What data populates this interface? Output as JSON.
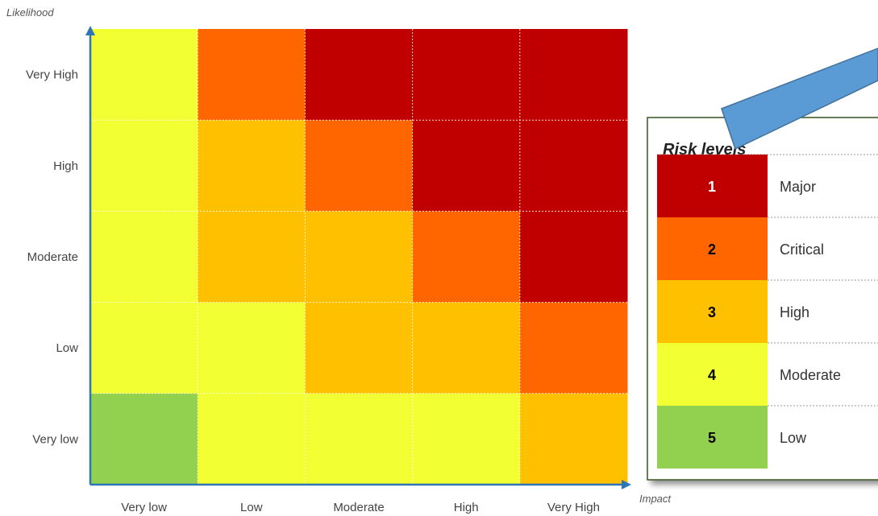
{
  "chart_data": {
    "type": "heatmap",
    "xlabel": "Impact",
    "ylabel": "Likelihood",
    "x_categories": [
      "Very low",
      "Low",
      "Moderate",
      "High",
      "Very High"
    ],
    "y_categories": [
      "Very low",
      "Low",
      "Moderate",
      "High",
      "Very High"
    ],
    "matrix_rows_top_to_bottom": [
      {
        "likelihood": "Very High",
        "levels": [
          4,
          2,
          1,
          1,
          1
        ]
      },
      {
        "likelihood": "High",
        "levels": [
          4,
          3,
          2,
          1,
          1
        ]
      },
      {
        "likelihood": "Moderate",
        "levels": [
          4,
          3,
          3,
          2,
          1
        ]
      },
      {
        "likelihood": "Low",
        "levels": [
          4,
          4,
          3,
          3,
          2
        ]
      },
      {
        "likelihood": "Very low",
        "levels": [
          5,
          4,
          4,
          4,
          3
        ]
      }
    ],
    "legend": {
      "title": "Risk levels",
      "position": "right",
      "items": [
        {
          "level": 1,
          "number": "1",
          "name": "Major",
          "color": "#c00000",
          "text_color": "#ffffff"
        },
        {
          "level": 2,
          "number": "2",
          "name": "Critical",
          "color": "#ff6600",
          "text_color": "#000000"
        },
        {
          "level": 3,
          "number": "3",
          "name": "High",
          "color": "#ffc000",
          "text_color": "#000000"
        },
        {
          "level": 4,
          "number": "4",
          "name": "Moderate",
          "color": "#f2ff33",
          "text_color": "#000000"
        },
        {
          "level": 5,
          "number": "5",
          "name": "Low",
          "color": "#92d050",
          "text_color": "#000000"
        }
      ]
    },
    "axis_color": "#2e75b6",
    "grid": true
  },
  "decoration": {
    "callout_arrow_color": "#5b9bd5",
    "legend_border_color": "#375623"
  }
}
